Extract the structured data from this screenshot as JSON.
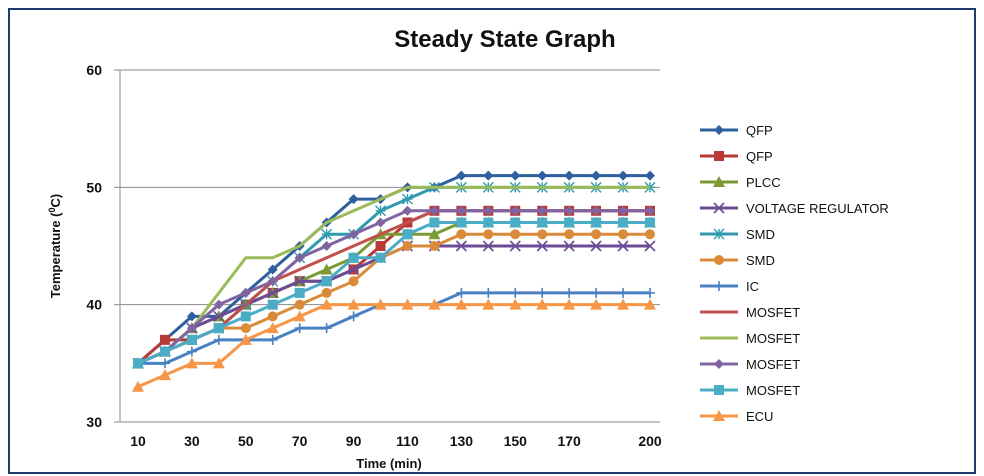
{
  "chart_data": {
    "type": "line",
    "title": "Steady State Graph",
    "xlabel": "Time (min)",
    "ylabel_main": "Temperature (",
    "ylabel_sup": "0",
    "ylabel_tail": "C)",
    "ylim": [
      30,
      60
    ],
    "yticks": [
      30,
      40,
      50,
      60
    ],
    "x": [
      10,
      20,
      30,
      40,
      50,
      60,
      70,
      80,
      90,
      100,
      110,
      120,
      130,
      140,
      150,
      160,
      170,
      180,
      190,
      200
    ],
    "xtick_labels": [
      "10",
      "30",
      "50",
      "70",
      "90",
      "110",
      "130",
      "150",
      "170",
      "200"
    ],
    "xtick_values": [
      10,
      30,
      50,
      70,
      90,
      110,
      130,
      150,
      170,
      200
    ],
    "grid": "horizontal",
    "legend_position": "right",
    "series": [
      {
        "name": "QFP",
        "color": "#2e5f9e",
        "marker": "diamond",
        "values": [
          35,
          37,
          39,
          39,
          41,
          43,
          45,
          47,
          49,
          49,
          50,
          50,
          51,
          51,
          51,
          51,
          51,
          51,
          51,
          51
        ]
      },
      {
        "name": "QFP",
        "color": "#b83a37",
        "marker": "square",
        "values": [
          35,
          37,
          37,
          38,
          40,
          41,
          42,
          42,
          43,
          45,
          47,
          48,
          48,
          48,
          48,
          48,
          48,
          48,
          48,
          48
        ]
      },
      {
        "name": "PLCC",
        "color": "#7a9a36",
        "marker": "triangle",
        "values": [
          35,
          36,
          38,
          39,
          40,
          41,
          42,
          43,
          44,
          46,
          46,
          46,
          47,
          47,
          47,
          47,
          47,
          47,
          47,
          47
        ]
      },
      {
        "name": "VOLTAGE REGULATOR",
        "color": "#6c4a96",
        "marker": "x",
        "values": [
          35,
          36,
          38,
          39,
          40,
          41,
          42,
          42,
          43,
          44,
          45,
          45,
          45,
          45,
          45,
          45,
          45,
          45,
          45,
          45
        ]
      },
      {
        "name": "SMD",
        "color": "#2f9aae",
        "marker": "star",
        "values": [
          35,
          36,
          37,
          38,
          40,
          42,
          44,
          46,
          46,
          48,
          49,
          50,
          50,
          50,
          50,
          50,
          50,
          50,
          50,
          50
        ]
      },
      {
        "name": "SMD",
        "color": "#d98b3a",
        "marker": "circle",
        "values": [
          35,
          36,
          37,
          38,
          38,
          39,
          40,
          41,
          42,
          44,
          45,
          45,
          46,
          46,
          46,
          46,
          46,
          46,
          46,
          46
        ]
      },
      {
        "name": "IC",
        "color": "#4a80c4",
        "marker": "plus",
        "values": [
          35,
          35,
          36,
          37,
          37,
          37,
          38,
          38,
          39,
          40,
          40,
          40,
          41,
          41,
          41,
          41,
          41,
          41,
          41,
          41
        ]
      },
      {
        "name": "MOSFET",
        "color": "#c0504d",
        "marker": "none",
        "values": [
          35,
          36,
          37,
          38,
          40,
          42,
          43,
          44,
          45,
          46,
          47,
          48,
          48,
          48,
          48,
          48,
          48,
          48,
          48,
          48
        ]
      },
      {
        "name": "MOSFET",
        "color": "#9bbb59",
        "marker": "none",
        "values": [
          35,
          36,
          38,
          41,
          44,
          44,
          45,
          47,
          48,
          49,
          50,
          50,
          50,
          50,
          50,
          50,
          50,
          50,
          50,
          50
        ]
      },
      {
        "name": "MOSFET",
        "color": "#8064a2",
        "marker": "diamond",
        "values": [
          35,
          36,
          38,
          40,
          41,
          42,
          44,
          45,
          46,
          47,
          48,
          48,
          48,
          48,
          48,
          48,
          48,
          48,
          48,
          48
        ]
      },
      {
        "name": "MOSFET",
        "color": "#4bacc6",
        "marker": "square",
        "values": [
          35,
          36,
          37,
          38,
          39,
          40,
          41,
          42,
          44,
          44,
          46,
          47,
          47,
          47,
          47,
          47,
          47,
          47,
          47,
          47
        ]
      },
      {
        "name": "ECU",
        "color": "#f79646",
        "marker": "triangle",
        "values": [
          33,
          34,
          35,
          35,
          37,
          38,
          39,
          40,
          40,
          40,
          40,
          40,
          40,
          40,
          40,
          40,
          40,
          40,
          40,
          40
        ]
      }
    ]
  }
}
